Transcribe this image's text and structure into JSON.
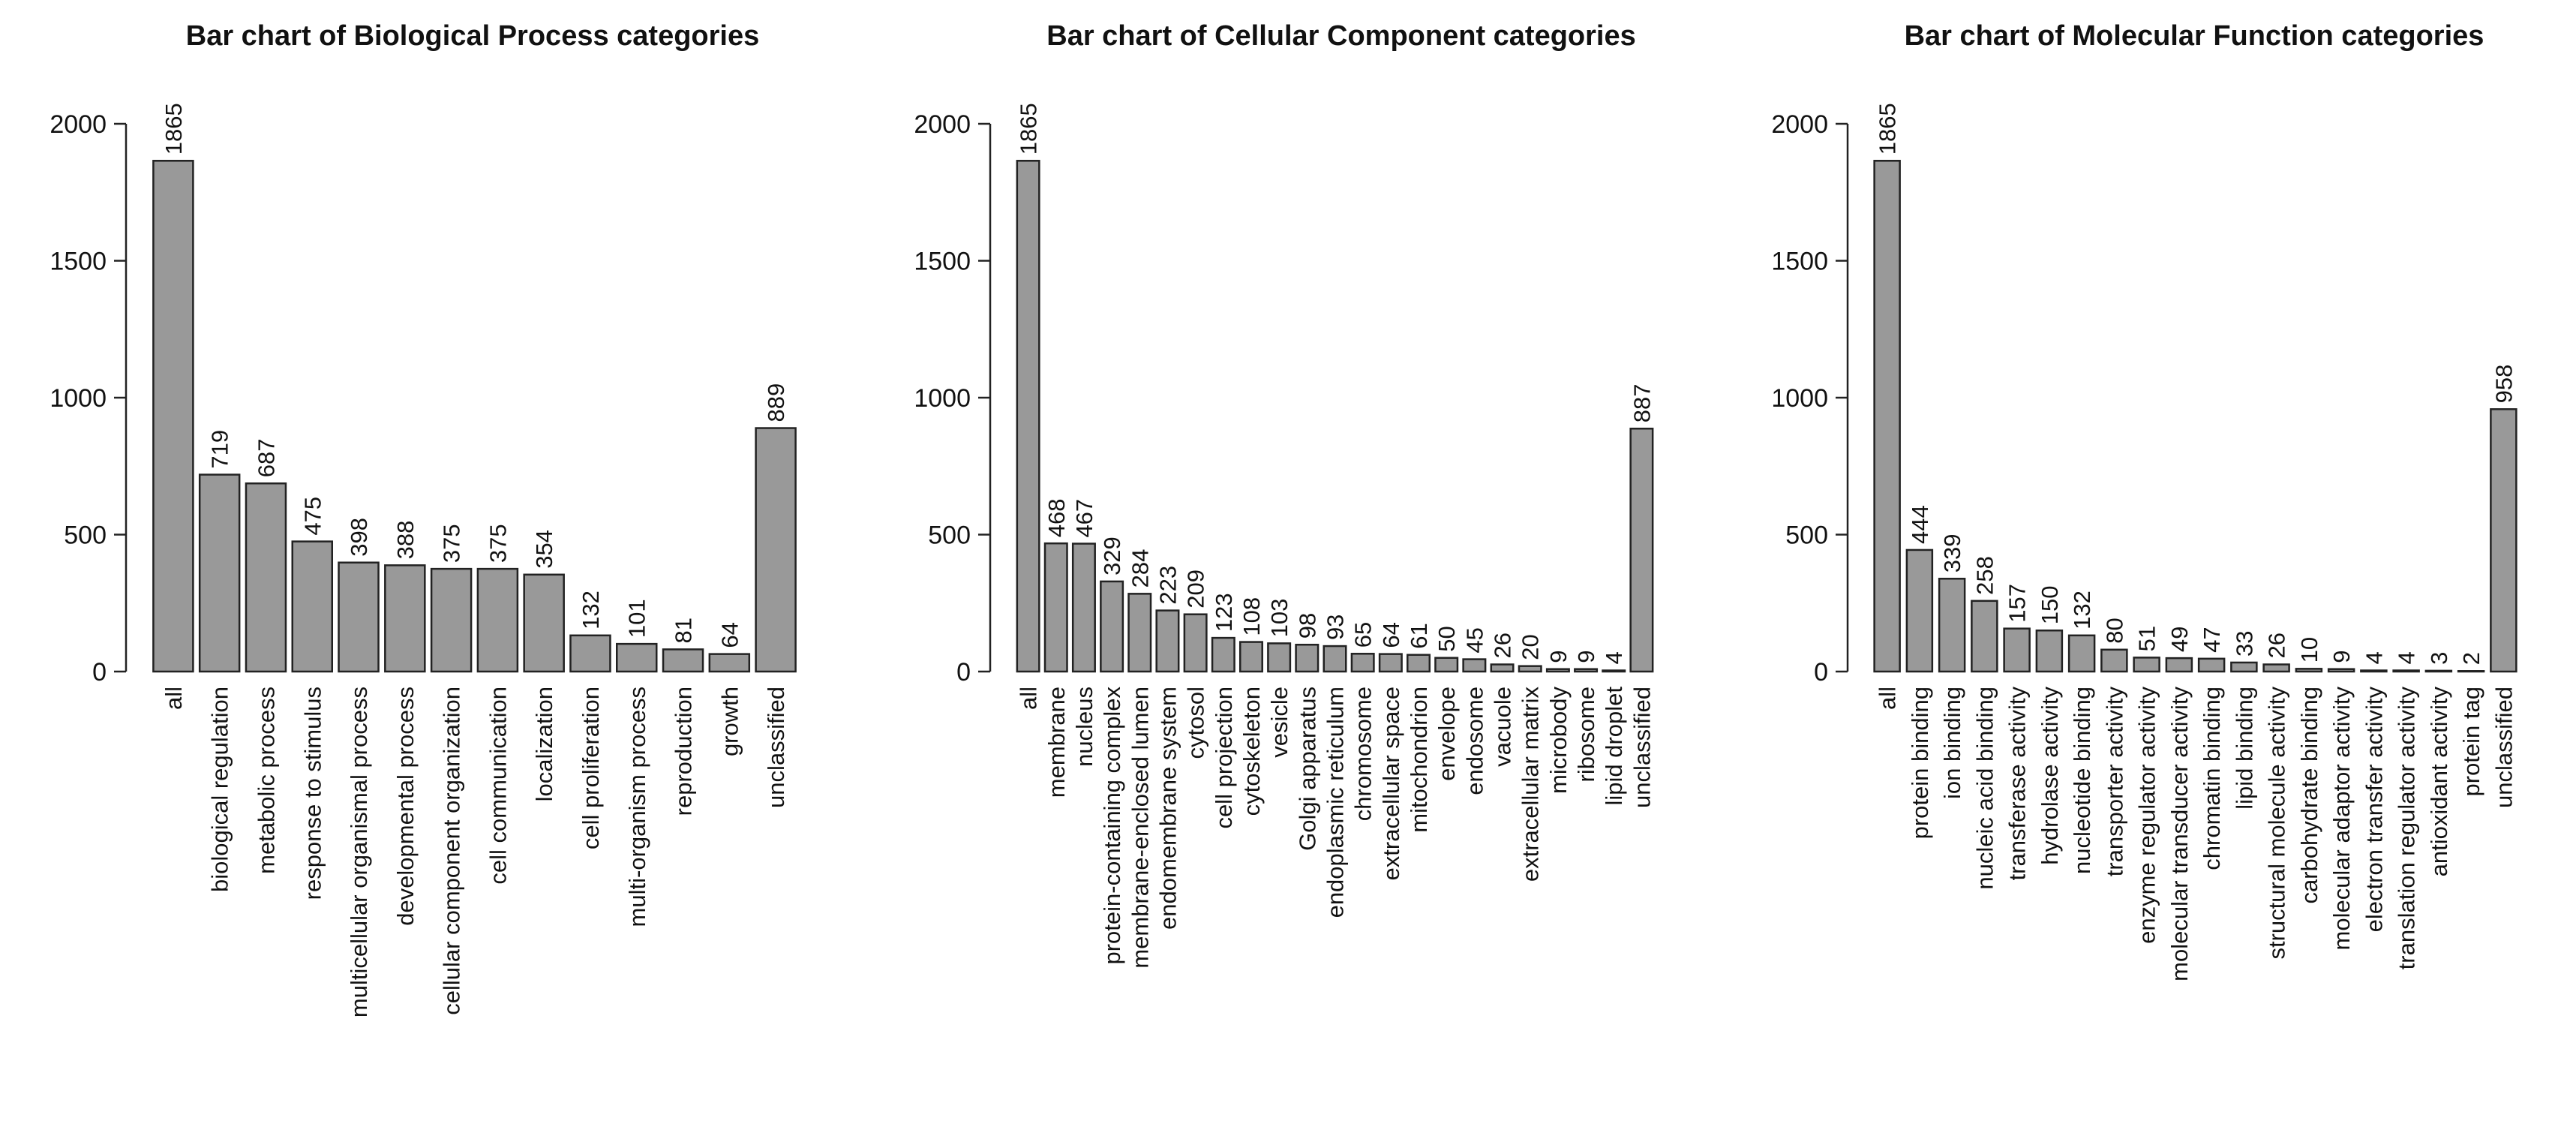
{
  "chart_data": [
    {
      "type": "bar",
      "title": "Bar chart of Biological Process categories",
      "xlabel": "",
      "ylabel": "",
      "ylim": [
        0,
        2000
      ],
      "yticks": [
        0,
        500,
        1000,
        1500,
        2000
      ],
      "grid": false,
      "bar_color": "#999999",
      "categories": [
        "all",
        "biological regulation",
        "metabolic process",
        "response to stimulus",
        "multicellular organismal process",
        "developmental process",
        "cellular component organization",
        "cell communication",
        "localization",
        "cell proliferation",
        "multi-organism process",
        "reproduction",
        "growth",
        "unclassified"
      ],
      "values": [
        1865,
        719,
        687,
        475,
        398,
        388,
        375,
        375,
        354,
        132,
        101,
        81,
        64,
        889
      ],
      "value_labels": [
        "1865",
        "719",
        "687",
        "475",
        "398",
        "388",
        "375",
        "375",
        "354",
        "132",
        "101",
        "81",
        "64",
        "889"
      ],
      "ytick_labels": [
        "0",
        "500",
        "1000",
        "1500",
        "2000"
      ]
    },
    {
      "type": "bar",
      "title": "Bar chart of Cellular Component categories",
      "xlabel": "",
      "ylabel": "",
      "ylim": [
        0,
        2000
      ],
      "yticks": [
        0,
        500,
        1000,
        1500,
        2000
      ],
      "grid": false,
      "bar_color": "#999999",
      "categories": [
        "all",
        "membrane",
        "nucleus",
        "protein-containing complex",
        "membrane-enclosed lumen",
        "endomembrane system",
        "cytosol",
        "cell projection",
        "cytoskeleton",
        "vesicle",
        "Golgi apparatus",
        "endoplasmic reticulum",
        "chromosome",
        "extracellular space",
        "mitochondrion",
        "envelope",
        "endosome",
        "vacuole",
        "extracellular matrix",
        "microbody",
        "ribosome",
        "lipid droplet",
        "unclassified"
      ],
      "values": [
        1865,
        468,
        467,
        329,
        284,
        223,
        209,
        123,
        108,
        103,
        98,
        93,
        65,
        64,
        61,
        50,
        45,
        26,
        20,
        9,
        9,
        4,
        887
      ],
      "value_labels": [
        "1865",
        "468",
        "467",
        "329",
        "284",
        "223",
        "209",
        "123",
        "108",
        "103",
        "98",
        "93",
        "65",
        "64",
        "61",
        "50",
        "45",
        "26",
        "20",
        "9",
        "9",
        "4",
        "887"
      ],
      "ytick_labels": [
        "0",
        "500",
        "1000",
        "1500",
        "2000"
      ]
    },
    {
      "type": "bar",
      "title": "Bar chart of Molecular Function categories",
      "xlabel": "",
      "ylabel": "",
      "ylim": [
        0,
        2000
      ],
      "yticks": [
        0,
        500,
        1000,
        1500,
        2000
      ],
      "grid": false,
      "bar_color": "#999999",
      "categories": [
        "all",
        "protein binding",
        "ion binding",
        "nucleic acid binding",
        "transferase activity",
        "hydrolase activity",
        "nucleotide binding",
        "transporter activity",
        "enzyme regulator activity",
        "molecular transducer activity",
        "chromatin binding",
        "lipid binding",
        "structural molecule activity",
        "carbohydrate binding",
        "molecular adaptor activity",
        "electron transfer activity",
        "translation regulator activity",
        "antioxidant activity",
        "protein tag",
        "unclassified"
      ],
      "values": [
        1865,
        444,
        339,
        258,
        157,
        150,
        132,
        80,
        51,
        49,
        47,
        33,
        26,
        10,
        9,
        4,
        4,
        3,
        2,
        958
      ],
      "value_labels": [
        "1865",
        "444",
        "339",
        "258",
        "157",
        "150",
        "132",
        "80",
        "51",
        "49",
        "47",
        "33",
        "26",
        "10",
        "9",
        "4",
        "4",
        "3",
        "2",
        "958"
      ],
      "ytick_labels": [
        "0",
        "500",
        "1000",
        "1500",
        "2000"
      ]
    }
  ]
}
